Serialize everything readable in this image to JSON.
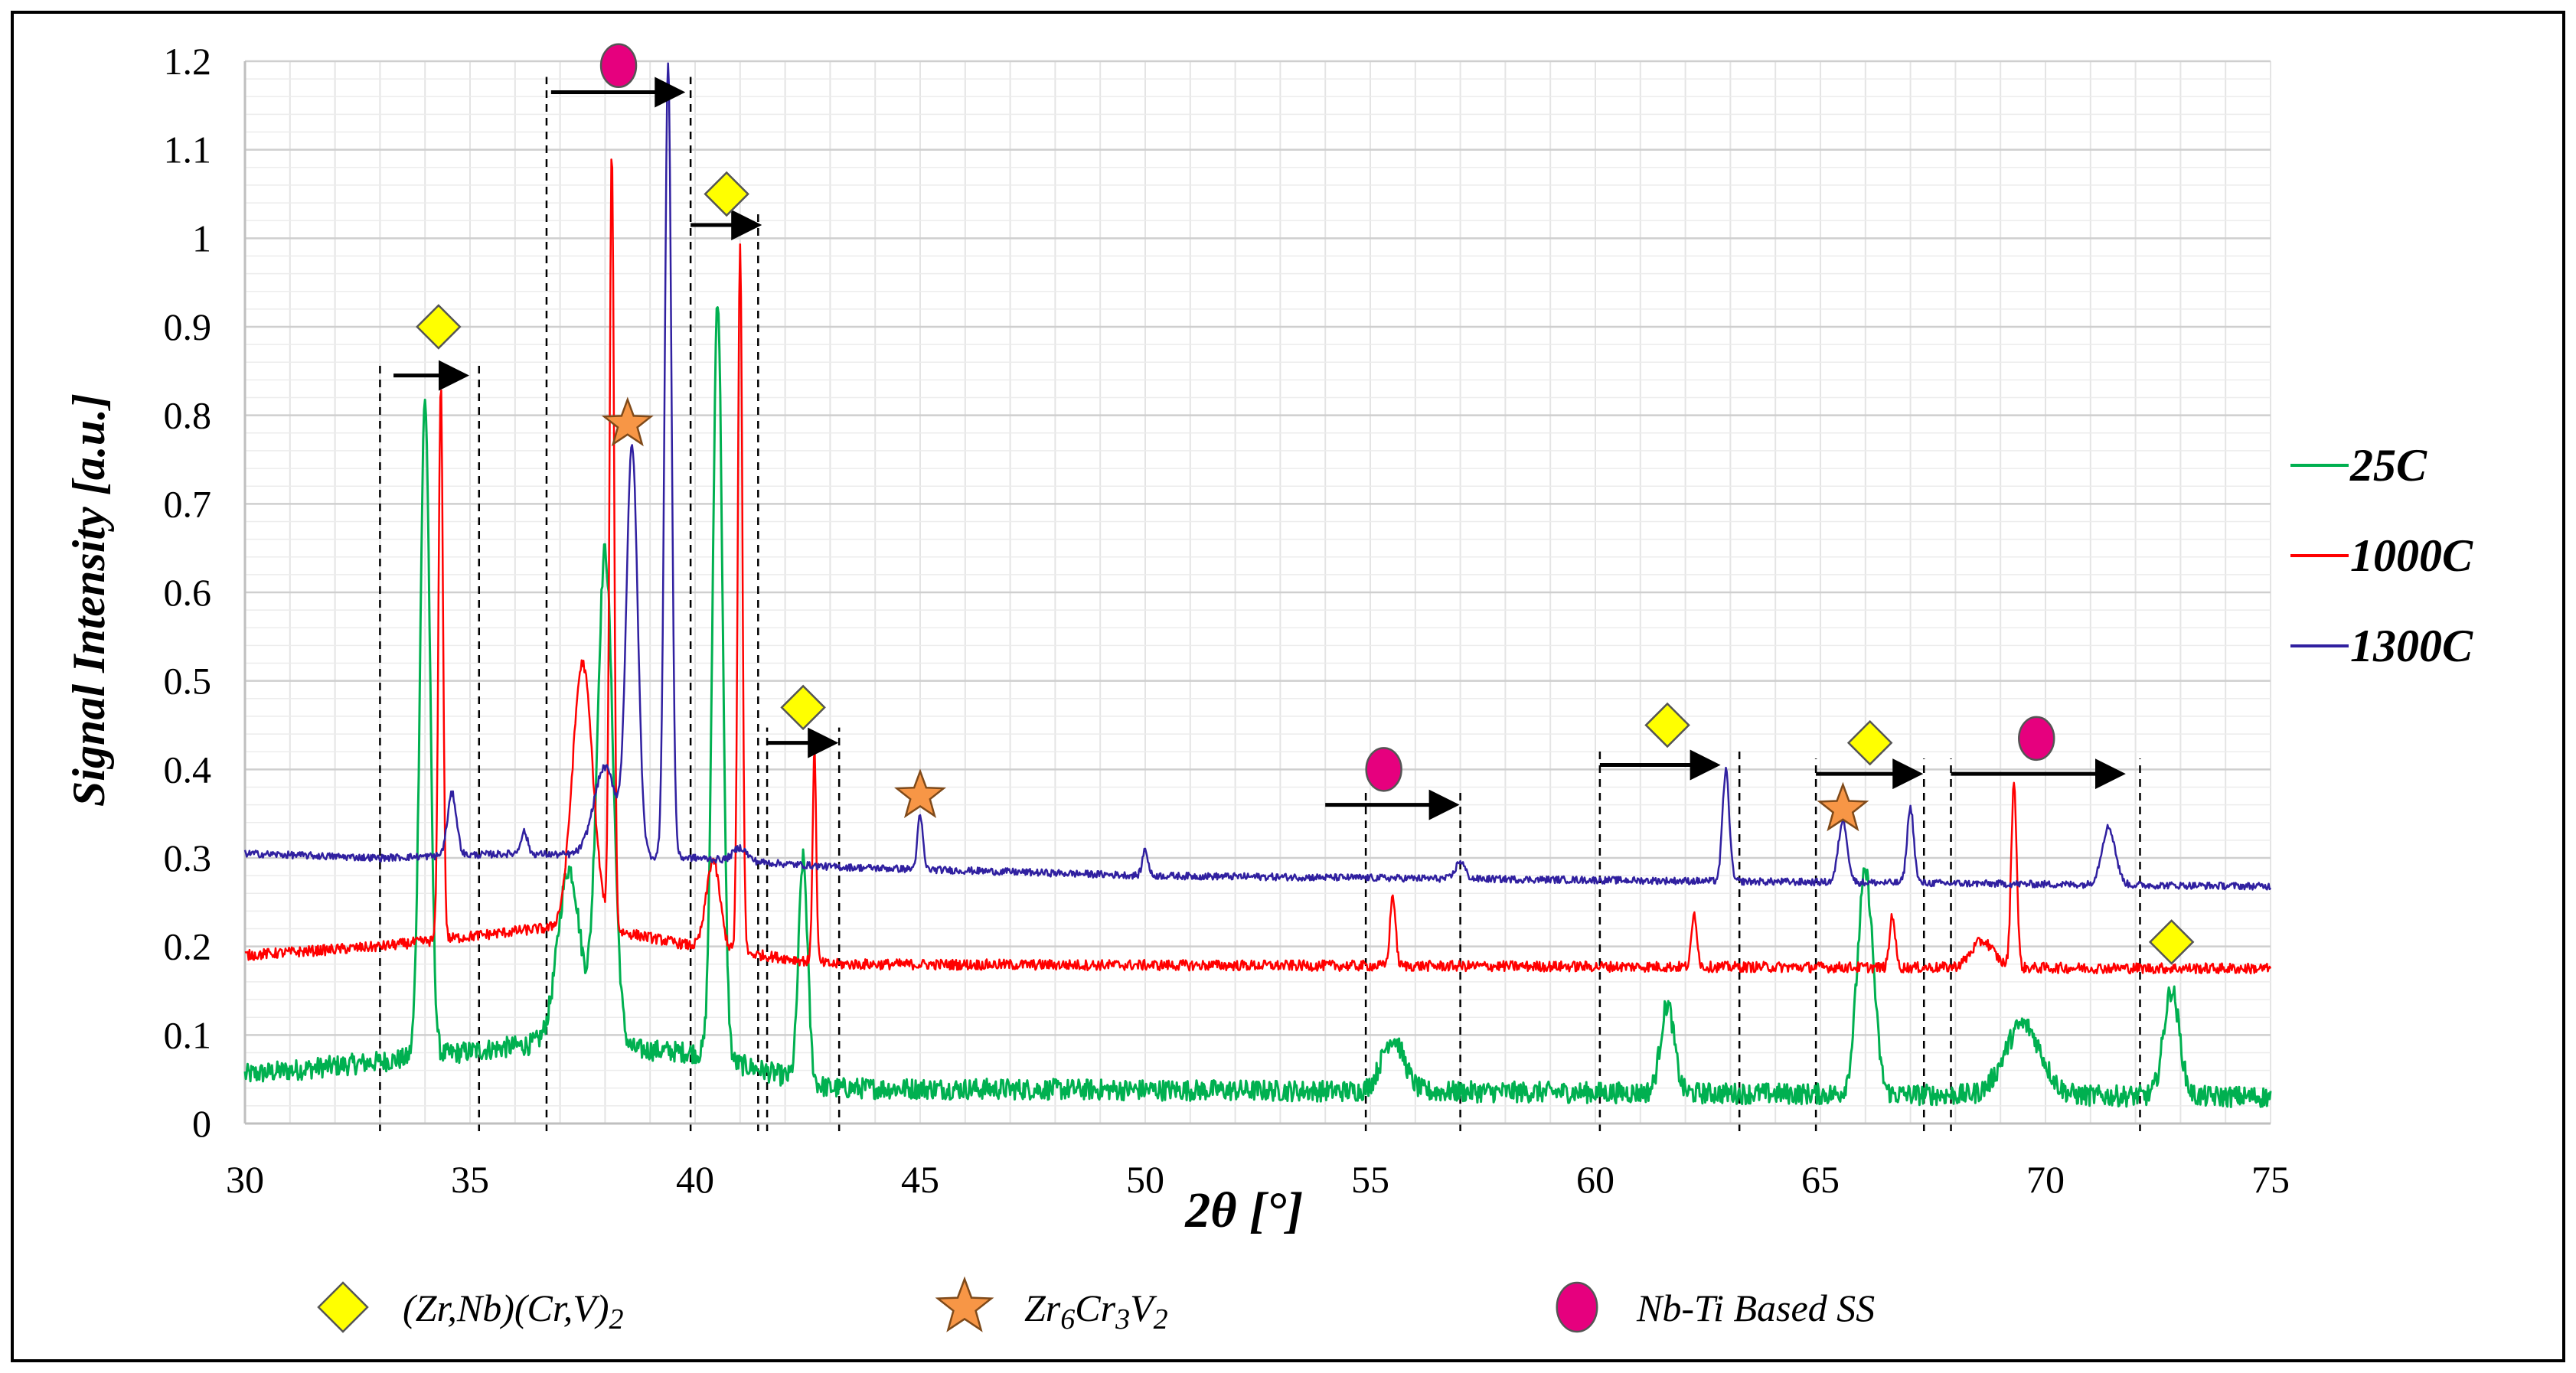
{
  "chart_data": {
    "type": "line",
    "title": "",
    "xlabel": "2θ [°]",
    "ylabel": "Signal Intensity [a.u.]",
    "xlim": [
      30,
      75
    ],
    "ylim": [
      0,
      1.2
    ],
    "xticks": [
      30,
      35,
      40,
      45,
      50,
      55,
      60,
      65,
      70,
      75
    ],
    "yticks": [
      0,
      0.1,
      0.2,
      0.3,
      0.4,
      0.5,
      0.6,
      0.7,
      0.8,
      0.9,
      1,
      1.1,
      1.2
    ],
    "grid": true,
    "legend_position": "right",
    "series": [
      {
        "name": "25C",
        "color": "#00b050",
        "baseline": [
          [
            30,
            0.055
          ],
          [
            33,
            0.07
          ],
          [
            36.5,
            0.09
          ],
          [
            40,
            0.08
          ],
          [
            43,
            0.04
          ],
          [
            60,
            0.035
          ],
          [
            75,
            0.03
          ]
        ],
        "peaks": [
          [
            34.0,
            0.74,
            0.22
          ],
          [
            38.0,
            0.56,
            0.35
          ],
          [
            37.2,
            0.2,
            0.5
          ],
          [
            40.5,
            0.86,
            0.22
          ],
          [
            42.4,
            0.25,
            0.2
          ],
          [
            55.5,
            0.06,
            0.5
          ],
          [
            61.6,
            0.1,
            0.3
          ],
          [
            66.0,
            0.25,
            0.35
          ],
          [
            69.5,
            0.08,
            0.8
          ],
          [
            72.8,
            0.12,
            0.35
          ]
        ],
        "noise": 0.012
      },
      {
        "name": "1000C",
        "color": "#ff0000",
        "baseline": [
          [
            30,
            0.19
          ],
          [
            33,
            0.2
          ],
          [
            36.5,
            0.22
          ],
          [
            38,
            0.22
          ],
          [
            40,
            0.2
          ],
          [
            43,
            0.18
          ],
          [
            75,
            0.175
          ]
        ],
        "peaks": [
          [
            34.35,
            0.63,
            0.1
          ],
          [
            38.15,
            0.88,
            0.1
          ],
          [
            37.5,
            0.3,
            0.45
          ],
          [
            41.0,
            0.8,
            0.1
          ],
          [
            40.4,
            0.1,
            0.3
          ],
          [
            42.65,
            0.24,
            0.08
          ],
          [
            55.5,
            0.08,
            0.12
          ],
          [
            62.2,
            0.06,
            0.12
          ],
          [
            66.6,
            0.06,
            0.12
          ],
          [
            69.3,
            0.21,
            0.12
          ],
          [
            68.6,
            0.03,
            0.5
          ]
        ],
        "noise": 0.006
      },
      {
        "name": "1300C",
        "color": "#3020a0",
        "baseline": [
          [
            30,
            0.305
          ],
          [
            33,
            0.3
          ],
          [
            36,
            0.305
          ],
          [
            40,
            0.3
          ],
          [
            43,
            0.29
          ],
          [
            50,
            0.28
          ],
          [
            60,
            0.275
          ],
          [
            75,
            0.268
          ]
        ],
        "peaks": [
          [
            34.6,
            0.07,
            0.2
          ],
          [
            36.2,
            0.025,
            0.15
          ],
          [
            38.6,
            0.46,
            0.25
          ],
          [
            39.4,
            0.9,
            0.15
          ],
          [
            38.0,
            0.1,
            0.5
          ],
          [
            41.0,
            0.015,
            0.3
          ],
          [
            45.0,
            0.06,
            0.12
          ],
          [
            50.0,
            0.03,
            0.12
          ],
          [
            57.0,
            0.02,
            0.2
          ],
          [
            62.9,
            0.125,
            0.15
          ],
          [
            65.5,
            0.07,
            0.2
          ],
          [
            67.0,
            0.085,
            0.15
          ],
          [
            71.4,
            0.065,
            0.3
          ]
        ],
        "noise": 0.004
      }
    ],
    "shift_markers": [
      {
        "phase": "diamond",
        "symbol_at": [
          34.3,
          0.9
        ],
        "arrow": [
          33.3,
          35.0,
          0.845
        ],
        "dashed_lines": [
          33.0,
          35.2
        ]
      },
      {
        "phase": "circle",
        "symbol_at": [
          38.3,
          1.195
        ],
        "arrow": [
          36.8,
          39.8,
          1.165
        ],
        "dashed_lines": [
          36.7,
          39.9
        ]
      },
      {
        "phase": "star",
        "symbol_at": [
          38.5,
          0.79
        ],
        "arrow": null,
        "dashed_lines": []
      },
      {
        "phase": "diamond",
        "symbol_at": [
          40.7,
          1.05
        ],
        "arrow": [
          39.9,
          41.5,
          1.015
        ],
        "dashed_lines": [
          41.4
        ]
      },
      {
        "phase": "diamond",
        "symbol_at": [
          42.4,
          0.47
        ],
        "arrow": [
          41.6,
          43.2,
          0.43
        ],
        "dashed_lines": [
          41.6,
          43.2
        ]
      },
      {
        "phase": "star",
        "symbol_at": [
          45.0,
          0.37
        ],
        "arrow": null,
        "dashed_lines": []
      },
      {
        "phase": "circle",
        "symbol_at": [
          55.3,
          0.4
        ],
        "arrow": [
          54.0,
          57.0,
          0.36
        ],
        "dashed_lines": [
          54.9,
          57.0
        ]
      },
      {
        "phase": "diamond",
        "symbol_at": [
          61.6,
          0.45
        ],
        "arrow": [
          60.1,
          62.8,
          0.405
        ],
        "dashed_lines": [
          60.1,
          63.2
        ]
      },
      {
        "phase": "diamond",
        "symbol_at": [
          66.1,
          0.43
        ],
        "arrow": [
          64.9,
          67.3,
          0.395
        ],
        "dashed_lines": [
          64.9,
          67.3
        ]
      },
      {
        "phase": "star",
        "symbol_at": [
          65.5,
          0.355
        ],
        "arrow": null,
        "dashed_lines": []
      },
      {
        "phase": "circle",
        "symbol_at": [
          69.8,
          0.435
        ],
        "arrow": [
          67.9,
          71.8,
          0.395
        ],
        "dashed_lines": [
          67.9,
          72.1
        ]
      },
      {
        "phase": "diamond",
        "symbol_at": [
          72.8,
          0.205
        ],
        "arrow": null,
        "dashed_lines": []
      }
    ],
    "phase_legend": [
      {
        "symbol": "diamond",
        "label_parts": [
          [
            "(Zr,Nb)(Cr,V)",
            ""
          ],
          [
            "2",
            "sub"
          ]
        ]
      },
      {
        "symbol": "star",
        "label_parts": [
          [
            "Zr",
            ""
          ],
          [
            "6",
            "sub"
          ],
          [
            "Cr",
            ""
          ],
          [
            "3",
            "sub"
          ],
          [
            "V",
            ""
          ],
          [
            "2",
            "sub"
          ]
        ]
      },
      {
        "symbol": "circle",
        "label_parts": [
          [
            "Nb-Ti Based SS",
            ""
          ]
        ]
      }
    ],
    "symbol_colors": {
      "diamond": "#ffff00",
      "star": "#f79646",
      "circle": "#e6007e"
    }
  }
}
